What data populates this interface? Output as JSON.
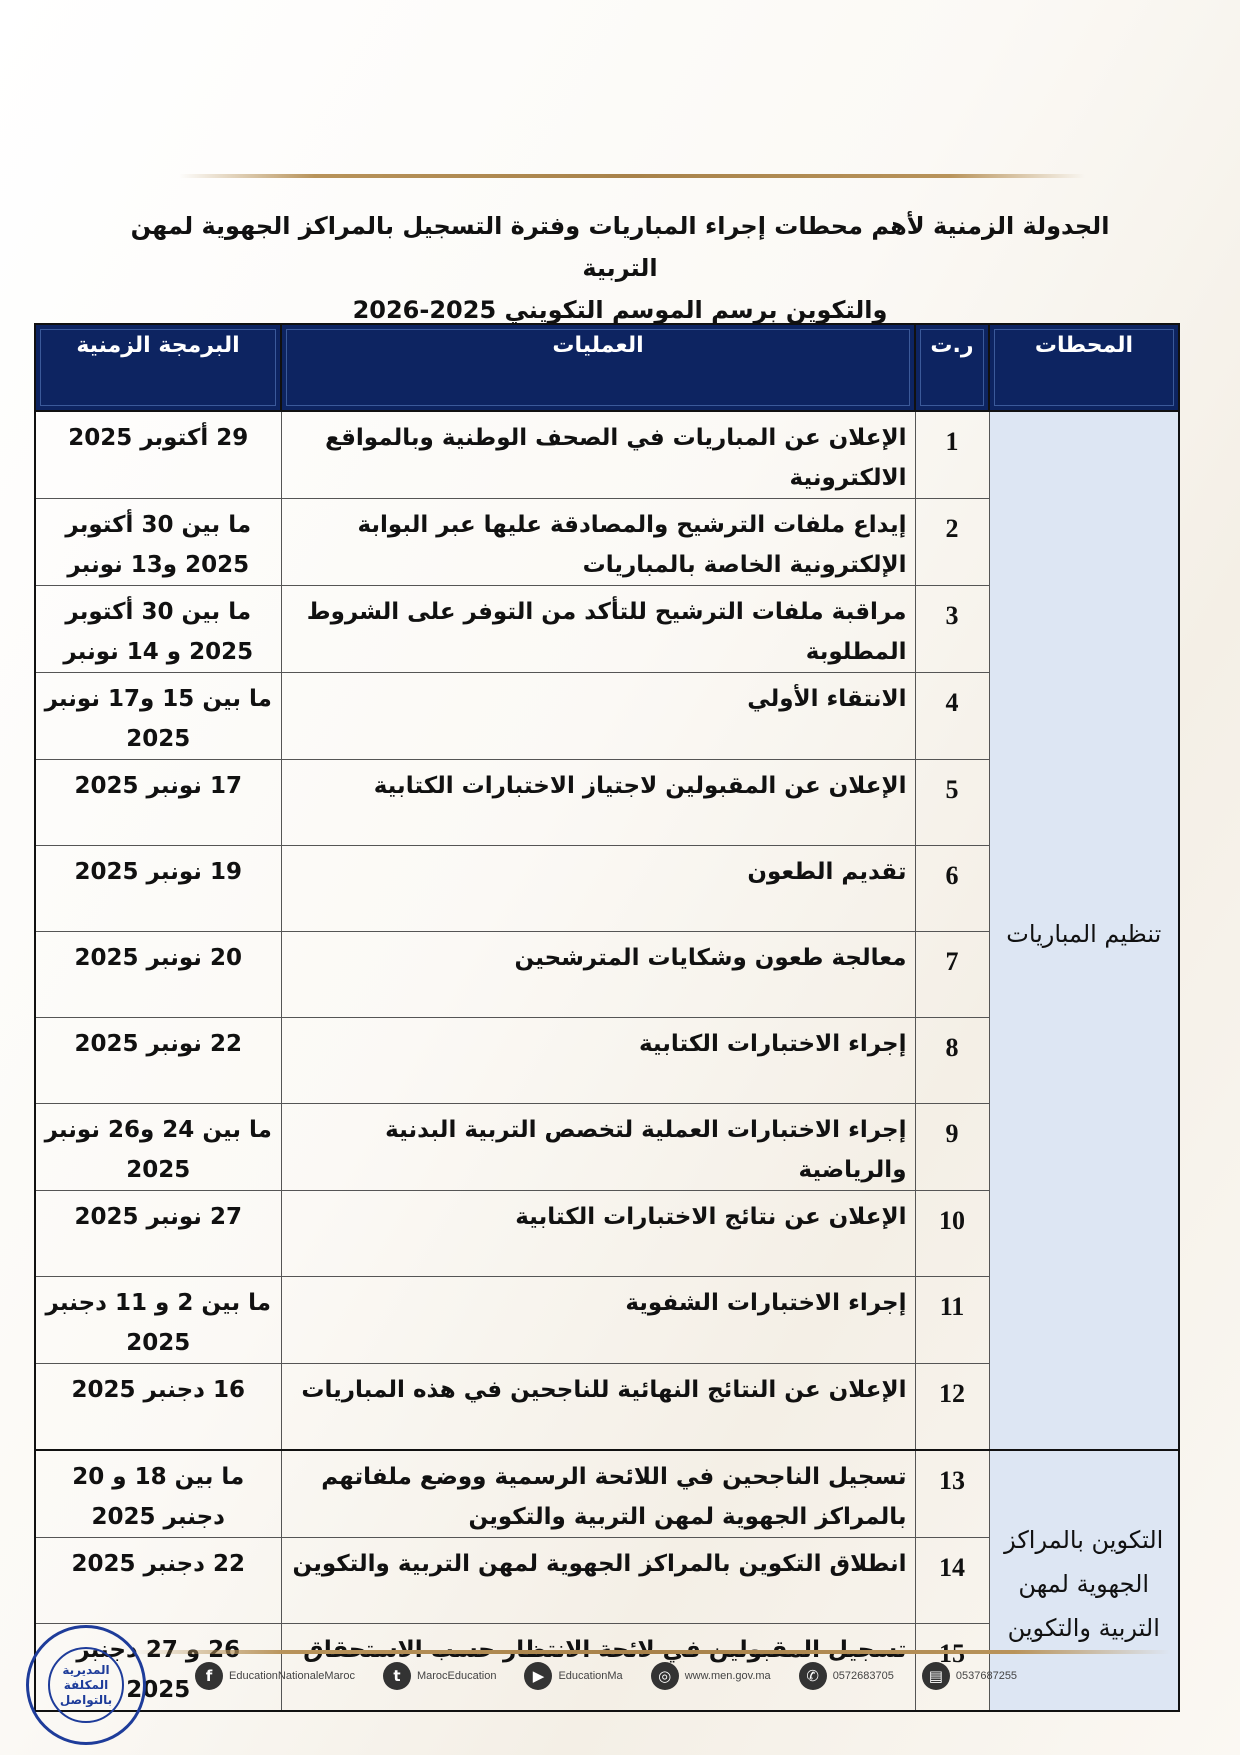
{
  "title": {
    "line1": "الجدولة الزمنية لأهم محطات إجراء المباريات وفترة التسجيل بالمراكز الجهوية لمهن التربية",
    "line2": "والتكوين برسم الموسم التكويني 2025-2026"
  },
  "table": {
    "headers": {
      "stations": "المحطات",
      "num": "ر.ت",
      "operations": "العمليات",
      "schedule": "البرمجة الزمنية"
    },
    "groups": [
      {
        "station": "تنظيم المباريات"
      },
      {
        "station": "التكوين بالمراكز الجهوية لمهن التربية والتكوين"
      }
    ],
    "rows": [
      {
        "num": "1",
        "operation": "الإعلان عن المباريات في الصحف الوطنية وبالمواقع الالكترونية",
        "date": "29 أكتوبر 2025"
      },
      {
        "num": "2",
        "operation": "إيداع ملفات الترشيح والمصادقة عليها عبر البوابة الإلكترونية الخاصة بالمباريات",
        "date": "ما بين 30 أكتوبر 2025 و13 نونبر"
      },
      {
        "num": "3",
        "operation": "مراقبة ملفات الترشيح للتأكد من التوفر على الشروط المطلوبة",
        "date": "ما بين 30 أكتوبر 2025 و 14 نونبر"
      },
      {
        "num": "4",
        "operation": "الانتقاء الأولي",
        "date": "ما بين 15 و17 نونبر 2025"
      },
      {
        "num": "5",
        "operation": "الإعلان عن المقبولين لاجتياز الاختبارات الكتابية",
        "date": "17 نونبر 2025"
      },
      {
        "num": "6",
        "operation": "تقديم الطعون",
        "date": "19 نونبر 2025"
      },
      {
        "num": "7",
        "operation": "معالجة طعون وشكايات المترشحين",
        "date": "20 نونبر 2025"
      },
      {
        "num": "8",
        "operation": "إجراء الاختبارات الكتابية",
        "date": "22 نونبر 2025"
      },
      {
        "num": "9",
        "operation": "إجراء الاختبارات العملية  لتخصص التربية البدنية والرياضية",
        "date": "ما بين 24 و26 نونبر 2025"
      },
      {
        "num": "10",
        "operation": "الإعلان عن نتائج الاختبارات الكتابية",
        "date": "27 نونبر 2025"
      },
      {
        "num": "11",
        "operation": "إجراء الاختبارات الشفوية",
        "date": "ما بين 2 و 11 دجنبر 2025"
      },
      {
        "num": "12",
        "operation": "الإعلان عن النتائج النهائية للناجحين في هذه المباريات",
        "date": "16 دجنبر 2025"
      },
      {
        "num": "13",
        "operation": "تسجيل الناجحين في اللائحة الرسمية ووضع ملفاتهم بالمراكز الجهوية لمهن التربية والتكوين",
        "date": "ما بين 18 و 20 دجنبر 2025"
      },
      {
        "num": "14",
        "operation": "انطلاق التكوين بالمراكز الجهوية لمهن التربية والتكوين",
        "date": "22 دجنبر 2025"
      },
      {
        "num": "15",
        "operation": "تسجيل المقبولين في لائحة الانتظار حسب الاستحقاق",
        "date": "26 و 27 دجنبر 2025"
      }
    ]
  },
  "footer": {
    "items": [
      {
        "icon": "facebook-icon",
        "text": "EducationNationaleMaroc"
      },
      {
        "icon": "twitter-icon",
        "text": "MarocEducation"
      },
      {
        "icon": "youtube-icon",
        "text": "EducationMa"
      },
      {
        "icon": "globe-icon",
        "text": "www.men.gov.ma"
      },
      {
        "icon": "phone-icon",
        "text": "0572683705"
      },
      {
        "icon": "fax-icon",
        "text": "0537687255"
      }
    ],
    "seal": "المديرية المكلفة بالتواصل"
  },
  "colors": {
    "header_bg": "#0d2461",
    "station_bg": "#dde6f3",
    "gold": "#b8935a",
    "seal": "#1e3c9a"
  }
}
